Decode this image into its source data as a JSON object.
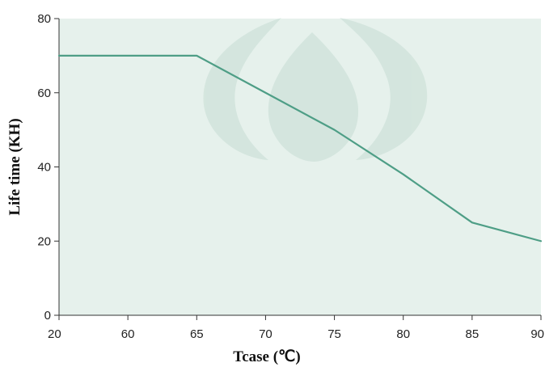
{
  "chart_data": {
    "type": "line",
    "title": "",
    "xlabel": "Tcase (℃)",
    "ylabel": "Life time (KH)",
    "x_tick_labels": [
      "20",
      "60",
      "65",
      "70",
      "75",
      "80",
      "85",
      "90"
    ],
    "y_ticks": [
      0,
      20,
      40,
      60,
      80
    ],
    "y_tick_labels": [
      "0",
      "20",
      "40",
      "60",
      "80"
    ],
    "ylim": [
      0,
      80
    ],
    "grid": false,
    "legend": "none",
    "series": [
      {
        "x": [
          20,
          60,
          65,
          70,
          75,
          80,
          85,
          90
        ],
        "values": [
          70,
          70,
          70,
          60,
          50,
          38,
          25,
          20
        ]
      }
    ],
    "colors": {
      "plot_background": "#e6f1ec",
      "line": "#4e9e86",
      "watermark": "#c6ddd4"
    }
  }
}
